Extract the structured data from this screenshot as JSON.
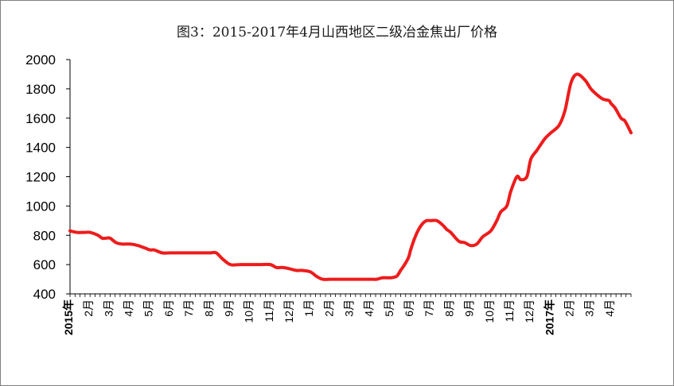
{
  "chart_data": {
    "type": "line",
    "title": "图3：2015-2017年4月山西地区二级冶金焦出厂价格",
    "xlabel": "",
    "ylabel": "",
    "ylim": [
      400,
      2000
    ],
    "yticks": [
      400,
      600,
      800,
      1000,
      1200,
      1400,
      1600,
      1800,
      2000
    ],
    "x_tick_labels": [
      "2015年",
      "2月",
      "3月",
      "4月",
      "5月",
      "6月",
      "7月",
      "8月",
      "9月",
      "10月",
      "11月",
      "12月",
      "1月",
      "2月",
      "3月",
      "4月",
      "5月",
      "6月",
      "7月",
      "8月",
      "9月",
      "10月",
      "11月",
      "12月",
      "2017年",
      "2月",
      "3月",
      "4月"
    ],
    "grid": false,
    "legend": "none",
    "series": [
      {
        "color": "#ee1c1c",
        "x": [
          0,
          0.35,
          0.75,
          1.0,
          1.4,
          1.6,
          1.8,
          2.0,
          2.3,
          2.6,
          3.0,
          3.4,
          3.6,
          3.8,
          4.0,
          4.2,
          4.6,
          5.0,
          5.5,
          6.0,
          6.5,
          6.8,
          7.0,
          7.3,
          7.6,
          8.0,
          8.5,
          9.0,
          9.5,
          10.0,
          10.3,
          10.6,
          11.0,
          11.3,
          11.6,
          12.0,
          12.3,
          12.6,
          13.0,
          13.5,
          14.0,
          14.5,
          15.0,
          15.3,
          15.6,
          16.0,
          16.3,
          16.5,
          16.7,
          16.9,
          17.0,
          17.2,
          17.4,
          17.6,
          17.8,
          18.0,
          18.3,
          18.6,
          18.8,
          19.0,
          19.4,
          19.7,
          20.0,
          20.3,
          20.6,
          21.0,
          21.3,
          21.5,
          21.8,
          22.0,
          22.3,
          22.5,
          22.8,
          23.0,
          23.3,
          23.7,
          24.0,
          24.4,
          24.7,
          25.0,
          25.3,
          25.7,
          26.0,
          26.3,
          26.6,
          26.9,
          27.0,
          27.2,
          27.5,
          27.7,
          28.0
        ],
        "values": [
          830,
          820,
          820,
          820,
          800,
          780,
          780,
          780,
          750,
          740,
          740,
          730,
          720,
          710,
          700,
          700,
          680,
          680,
          680,
          680,
          680,
          680,
          680,
          680,
          640,
          600,
          600,
          600,
          600,
          600,
          580,
          580,
          570,
          560,
          560,
          550,
          520,
          500,
          500,
          500,
          500,
          500,
          500,
          500,
          510,
          510,
          520,
          560,
          600,
          650,
          700,
          780,
          840,
          880,
          900,
          900,
          900,
          870,
          840,
          820,
          760,
          750,
          730,
          740,
          790,
          830,
          900,
          960,
          1000,
          1100,
          1200,
          1180,
          1200,
          1320,
          1380,
          1460,
          1500,
          1550,
          1650,
          1840,
          1900,
          1860,
          1800,
          1760,
          1730,
          1720,
          1700,
          1670,
          1600,
          1580,
          1500
        ]
      }
    ]
  }
}
